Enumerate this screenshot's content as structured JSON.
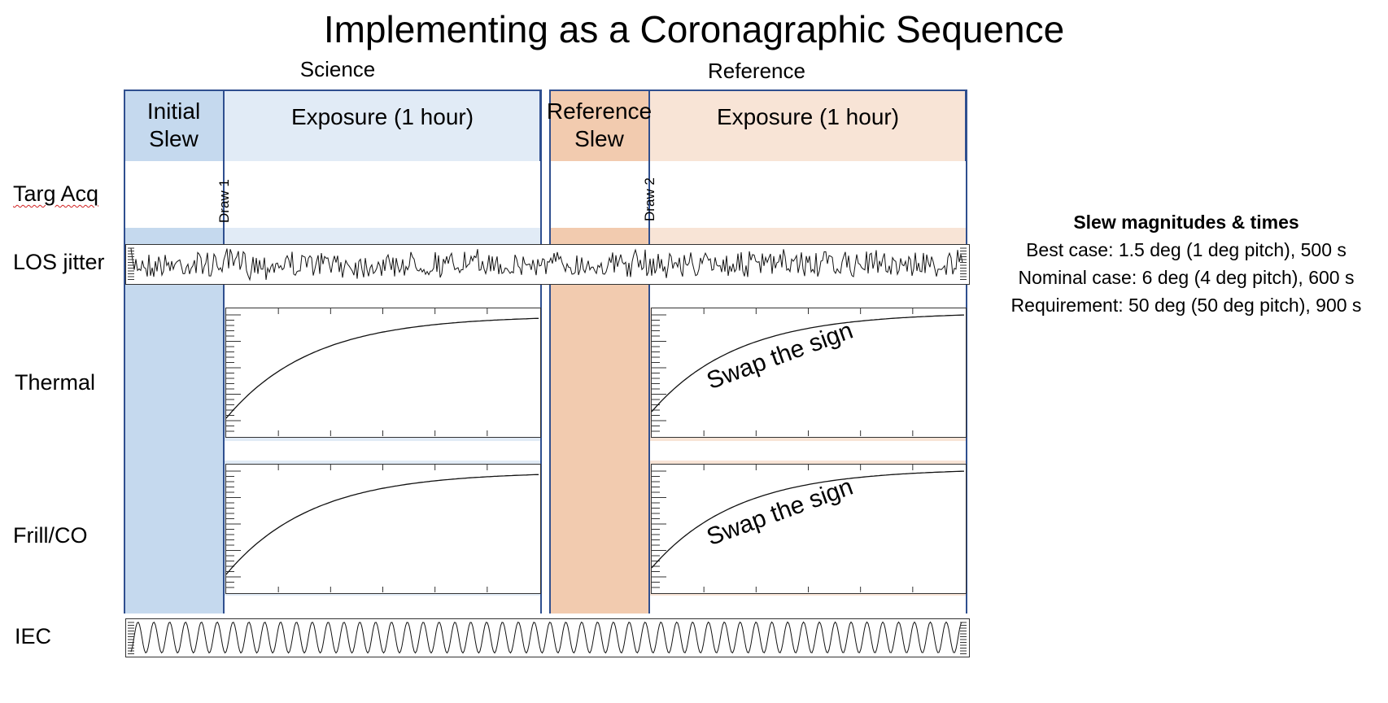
{
  "title": "Implementing as a Coronagraphic Sequence",
  "phases": {
    "science": "Science",
    "reference": "Reference"
  },
  "blocks": {
    "initial_slew": [
      "Initial",
      "Slew"
    ],
    "science_exposure": "Exposure (1 hour)",
    "reference_slew": [
      "Reference",
      "Slew"
    ],
    "reference_exposure": "Exposure (1 hour)"
  },
  "rows": {
    "targ_acq": "Targ Acq",
    "los_jitter": "LOS jitter",
    "thermal": "Thermal",
    "frill_co": "Frill/CO",
    "iec": "IEC"
  },
  "draws": {
    "draw1": "Draw 1",
    "draw2": "Draw 2"
  },
  "annotations": {
    "thermal_swap": "Swap the sign",
    "frill_swap": "Swap the sign"
  },
  "notes": {
    "heading": "Slew magnitudes & times",
    "lines": [
      "Best case: 1.5 deg (1 deg pitch), 500 s",
      "Nominal case: 6 deg (4 deg pitch), 600 s",
      "Requirement: 50 deg (50 deg pitch), 900 s"
    ]
  },
  "colors": {
    "science_slew": "#c5d9ee",
    "science_exposure": "#e1ebf6",
    "reference_slew": "#f2cbaf",
    "reference_exposure": "#f8e4d6",
    "frame": "#2f4f8f"
  }
}
